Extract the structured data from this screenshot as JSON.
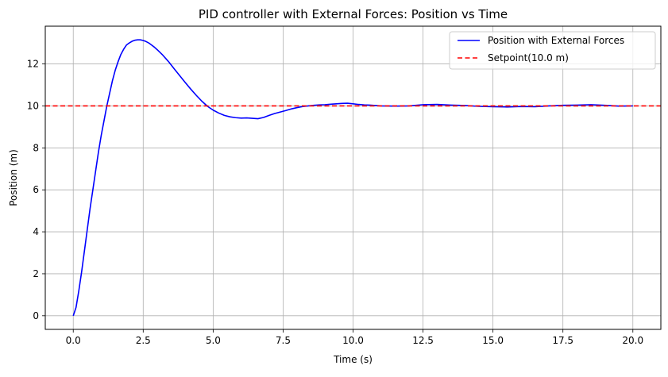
{
  "chart_data": {
    "type": "line",
    "title": "PID controller with External Forces: Position vs Time",
    "xlabel": "Time (s)",
    "ylabel": "Position (m)",
    "xlim": [
      -1.0,
      21.0
    ],
    "ylim": [
      -0.65,
      13.8
    ],
    "xticks": [
      0.0,
      2.5,
      5.0,
      7.5,
      10.0,
      12.5,
      15.0,
      17.5,
      20.0
    ],
    "xtick_labels": [
      "0.0",
      "2.5",
      "5.0",
      "7.5",
      "10.0",
      "12.5",
      "15.0",
      "17.5",
      "20.0"
    ],
    "yticks": [
      0,
      2,
      4,
      6,
      8,
      10,
      12
    ],
    "ytick_labels": [
      "0",
      "2",
      "4",
      "6",
      "8",
      "10",
      "12"
    ],
    "grid": true,
    "legend_position": "upper right",
    "series": [
      {
        "name": "Position with External Forces",
        "color": "#0000ff",
        "style": "solid",
        "x": [
          0.0,
          0.1,
          0.2,
          0.3,
          0.4,
          0.5,
          0.6,
          0.7,
          0.8,
          0.9,
          1.0,
          1.1,
          1.2,
          1.3,
          1.4,
          1.5,
          1.6,
          1.7,
          1.8,
          1.9,
          2.0,
          2.1,
          2.2,
          2.3,
          2.4,
          2.5,
          2.6,
          2.7,
          2.8,
          2.9,
          3.0,
          3.2,
          3.4,
          3.6,
          3.8,
          4.0,
          4.2,
          4.4,
          4.6,
          4.8,
          5.0,
          5.2,
          5.4,
          5.6,
          5.8,
          6.0,
          6.2,
          6.4,
          6.6,
          6.8,
          7.0,
          7.2,
          7.4,
          7.6,
          7.8,
          8.0,
          8.2,
          8.4,
          8.6,
          8.8,
          9.0,
          9.2,
          9.4,
          9.6,
          9.8,
          10.0,
          10.2,
          10.4,
          10.6,
          10.8,
          11.0,
          11.5,
          12.0,
          12.5,
          13.0,
          13.5,
          14.0,
          14.5,
          15.0,
          15.5,
          16.0,
          16.5,
          17.0,
          17.5,
          18.0,
          18.5,
          19.0,
          19.5,
          20.0
        ],
        "y": [
          0.0,
          0.4,
          1.2,
          2.1,
          3.1,
          4.1,
          5.1,
          6.0,
          6.9,
          7.8,
          8.6,
          9.3,
          10.0,
          10.6,
          11.2,
          11.7,
          12.1,
          12.45,
          12.7,
          12.9,
          13.0,
          13.08,
          13.13,
          13.15,
          13.15,
          13.12,
          13.07,
          13.0,
          12.9,
          12.8,
          12.68,
          12.42,
          12.12,
          11.78,
          11.45,
          11.12,
          10.8,
          10.5,
          10.22,
          9.98,
          9.8,
          9.66,
          9.55,
          9.48,
          9.44,
          9.42,
          9.43,
          9.41,
          9.39,
          9.45,
          9.55,
          9.64,
          9.71,
          9.78,
          9.86,
          9.92,
          9.97,
          10.0,
          10.03,
          10.05,
          10.06,
          10.08,
          10.1,
          10.12,
          10.13,
          10.1,
          10.07,
          10.05,
          10.04,
          10.02,
          10.0,
          9.99,
          10.0,
          10.06,
          10.07,
          10.04,
          10.02,
          9.98,
          9.96,
          9.95,
          9.97,
          9.96,
          10.0,
          10.03,
          10.04,
          10.06,
          10.03,
          9.99,
          10.0
        ]
      },
      {
        "name": "Setpoint(10.0 m)",
        "color": "#ff0000",
        "style": "dashed",
        "type": "hline",
        "y": 10.0
      }
    ]
  }
}
